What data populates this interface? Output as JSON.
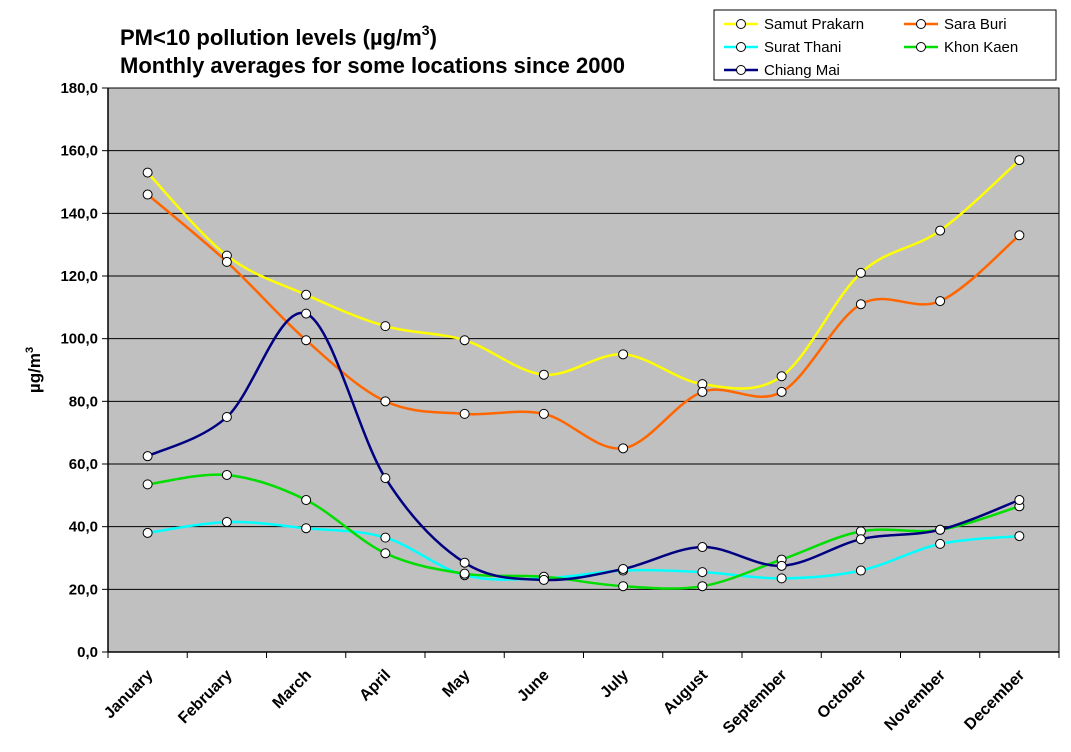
{
  "chart_data": {
    "type": "line",
    "title": "PM<10 pollution levels (µg/m",
    "title_sup": "3",
    "title_close": ")",
    "subtitle": "Monthly averages for some locations since 2000",
    "ylabel": "µg/m",
    "ylabel_sup": "3",
    "xlabel": "",
    "ylim": [
      0,
      180
    ],
    "ytick_values": [
      0,
      20,
      40,
      60,
      80,
      100,
      120,
      140,
      160,
      180
    ],
    "ytick_labels": [
      "0,0",
      "20,0",
      "40,0",
      "60,0",
      "80,0",
      "100,0",
      "120,0",
      "140,0",
      "160,0",
      "180,0"
    ],
    "grid": true,
    "legend_position": "top-right",
    "plot_background": "#c0c0c0",
    "categories": [
      "January",
      "February",
      "March",
      "April",
      "May",
      "June",
      "July",
      "August",
      "September",
      "October",
      "November",
      "December"
    ],
    "series": [
      {
        "name": "Samut Prakarn",
        "color": "#ffff00",
        "values": [
          153,
          126.5,
          114,
          104,
          99.5,
          88.5,
          95,
          85.5,
          88,
          121,
          134.5,
          157
        ]
      },
      {
        "name": "Sara Buri",
        "color": "#ff6600",
        "values": [
          146,
          124.5,
          99.5,
          80,
          76,
          76,
          65,
          83,
          83,
          111,
          112,
          133
        ]
      },
      {
        "name": "Surat Thani",
        "color": "#00ffff",
        "values": [
          38,
          41.5,
          39.5,
          36.5,
          24.5,
          23.5,
          26,
          25.5,
          23.5,
          26,
          34.5,
          37
        ]
      },
      {
        "name": "Khon Kaen",
        "color": "#00dd00",
        "values": [
          53.5,
          56.5,
          48.5,
          31.5,
          25,
          24,
          21,
          21,
          29.5,
          38.5,
          39,
          46.5
        ]
      },
      {
        "name": "Chiang Mai",
        "color": "#000080",
        "values": [
          62.5,
          75,
          108,
          55.5,
          28.5,
          23,
          26.5,
          33.5,
          27.5,
          36,
          39,
          48.5
        ]
      }
    ]
  }
}
